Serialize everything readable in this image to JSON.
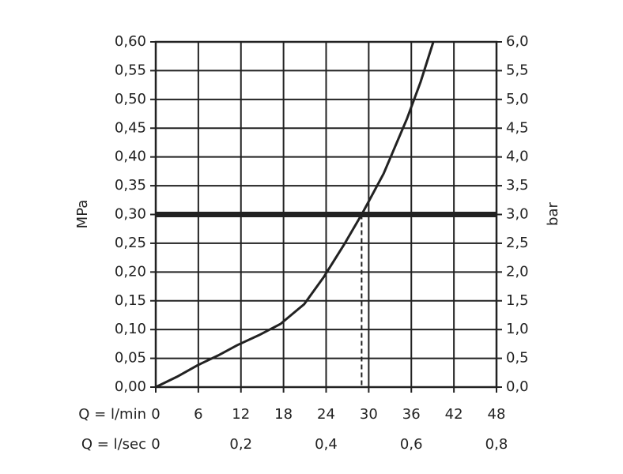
{
  "chart_data": {
    "type": "line",
    "y_label": "MPa",
    "y2_label": "bar",
    "x_label": "Q = l/min",
    "x2_label": "Q = l/sec",
    "x": [
      0,
      3,
      5.9,
      8.8,
      11.5,
      14.5,
      17.6,
      20.9,
      23.7,
      26.5,
      29.1,
      32.1,
      35.4,
      37.3,
      39.1
    ],
    "values": [
      0,
      0.018,
      0.038,
      0.055,
      0.073,
      0.09,
      0.11,
      0.144,
      0.192,
      0.247,
      0.302,
      0.371,
      0.467,
      0.53,
      0.6
    ],
    "color": "#222222",
    "reference_line": 0.3,
    "operating_flow": 29,
    "xlim": [
      0,
      48
    ],
    "xticks": [
      0,
      6,
      12,
      18,
      24,
      30,
      36,
      42,
      48
    ],
    "x2lim": [
      0,
      0.8
    ],
    "x2ticks": [
      0,
      {
        "value": 0.2,
        "label": "0,2"
      },
      {
        "value": 0.4,
        "label": "0,4"
      },
      {
        "value": 0.6,
        "label": "0,6"
      },
      {
        "value": 0.8,
        "label": "0,8"
      }
    ],
    "ylim": [
      0,
      0.6
    ],
    "yticks": [
      {
        "value": 0,
        "label": "0,00"
      },
      {
        "value": 0.05,
        "label": "0,05"
      },
      {
        "value": 0.1,
        "label": "0,10"
      },
      {
        "value": 0.15,
        "label": "0,15"
      },
      {
        "value": 0.2,
        "label": "0,20"
      },
      {
        "value": 0.25,
        "label": "0,25"
      },
      {
        "value": 0.3,
        "label": "0,30"
      },
      {
        "value": 0.35,
        "label": "0,35"
      },
      {
        "value": 0.4,
        "label": "0,40"
      },
      {
        "value": 0.45,
        "label": "0,45"
      },
      {
        "value": 0.5,
        "label": "0,50"
      },
      {
        "value": 0.55,
        "label": "0,55"
      },
      {
        "value": 0.6,
        "label": "0,60"
      }
    ],
    "y2lim": [
      0,
      6
    ],
    "y2ticks": [
      {
        "value": 0,
        "label": "0,0"
      },
      {
        "value": 0.5,
        "label": "0,5"
      },
      {
        "value": 1,
        "label": "1,0"
      },
      {
        "value": 1.5,
        "label": "1,5"
      },
      {
        "value": 2,
        "label": "2,0"
      },
      {
        "value": 2.5,
        "label": "2,5"
      },
      {
        "value": 3,
        "label": "3,0"
      },
      {
        "value": 3.5,
        "label": "3,5"
      },
      {
        "value": 4,
        "label": "4,0"
      },
      {
        "value": 4.5,
        "label": "4,5"
      },
      {
        "value": 5,
        "label": "5,0"
      },
      {
        "value": 5.5,
        "label": "5,5"
      },
      {
        "value": 6,
        "label": "6,0"
      }
    ],
    "grid": true
  }
}
